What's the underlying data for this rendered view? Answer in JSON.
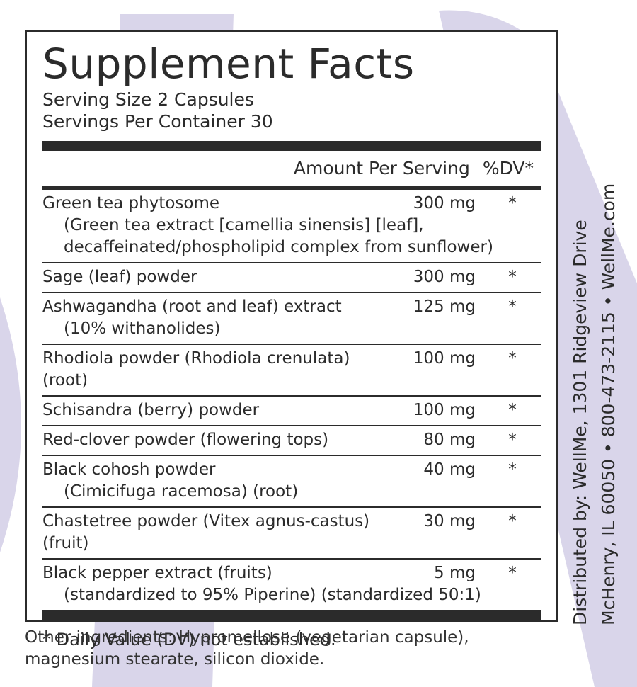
{
  "label": {
    "title": "Supplement Facts",
    "serving_size": "Serving Size 2 Capsules",
    "servings_per_container": "Servings Per Container 30",
    "columns": [
      "Amount Per Serving",
      "%DV*"
    ],
    "rows": [
      {
        "name": "Green tea phytosome",
        "amount": "300 mg",
        "dv": "*",
        "sub": [
          "(Green tea extract [camellia sinensis] [leaf],",
          "decaffeinated/phospholipid complex from sunflower)"
        ]
      },
      {
        "name": "Sage (leaf) powder",
        "amount": "300 mg",
        "dv": "*",
        "sub": []
      },
      {
        "name": "Ashwagandha (root and leaf) extract",
        "amount": "125 mg",
        "dv": "*",
        "sub": [
          "(10% withanolides)"
        ]
      },
      {
        "name": "Rhodiola powder (Rhodiola crenulata) (root)",
        "amount": "100 mg",
        "dv": "*",
        "sub": []
      },
      {
        "name": "Schisandra (berry) powder",
        "amount": "100 mg",
        "dv": "*",
        "sub": []
      },
      {
        "name": "Red-clover powder (flowering tops)",
        "amount": "80 mg",
        "dv": "*",
        "sub": []
      },
      {
        "name": "Black cohosh powder",
        "amount": "40 mg",
        "dv": "*",
        "sub": [
          "(Cimicifuga racemosa) (root)"
        ]
      },
      {
        "name": "Chastetree powder (Vitex agnus-castus) (fruit)",
        "amount": "30 mg",
        "dv": "*",
        "sub": []
      },
      {
        "name": "Black pepper extract (fruits)",
        "amount": "5 mg",
        "dv": "*",
        "sub": [
          "(standardized to 95% Piperine) (standardized 50:1)"
        ]
      }
    ],
    "footnote": "* Daily Value (DV) not established.",
    "other_ingredients": [
      "Other ingredients: Hypromellose (vegetarian capsule),",
      "magnesium stearate, silicon dioxide."
    ],
    "distributor": [
      "Distributed by: WellMe, 1301 Ridgeview Drive",
      "McHenry, IL 60050 • 800-473-2115 • WellMe.com"
    ]
  }
}
